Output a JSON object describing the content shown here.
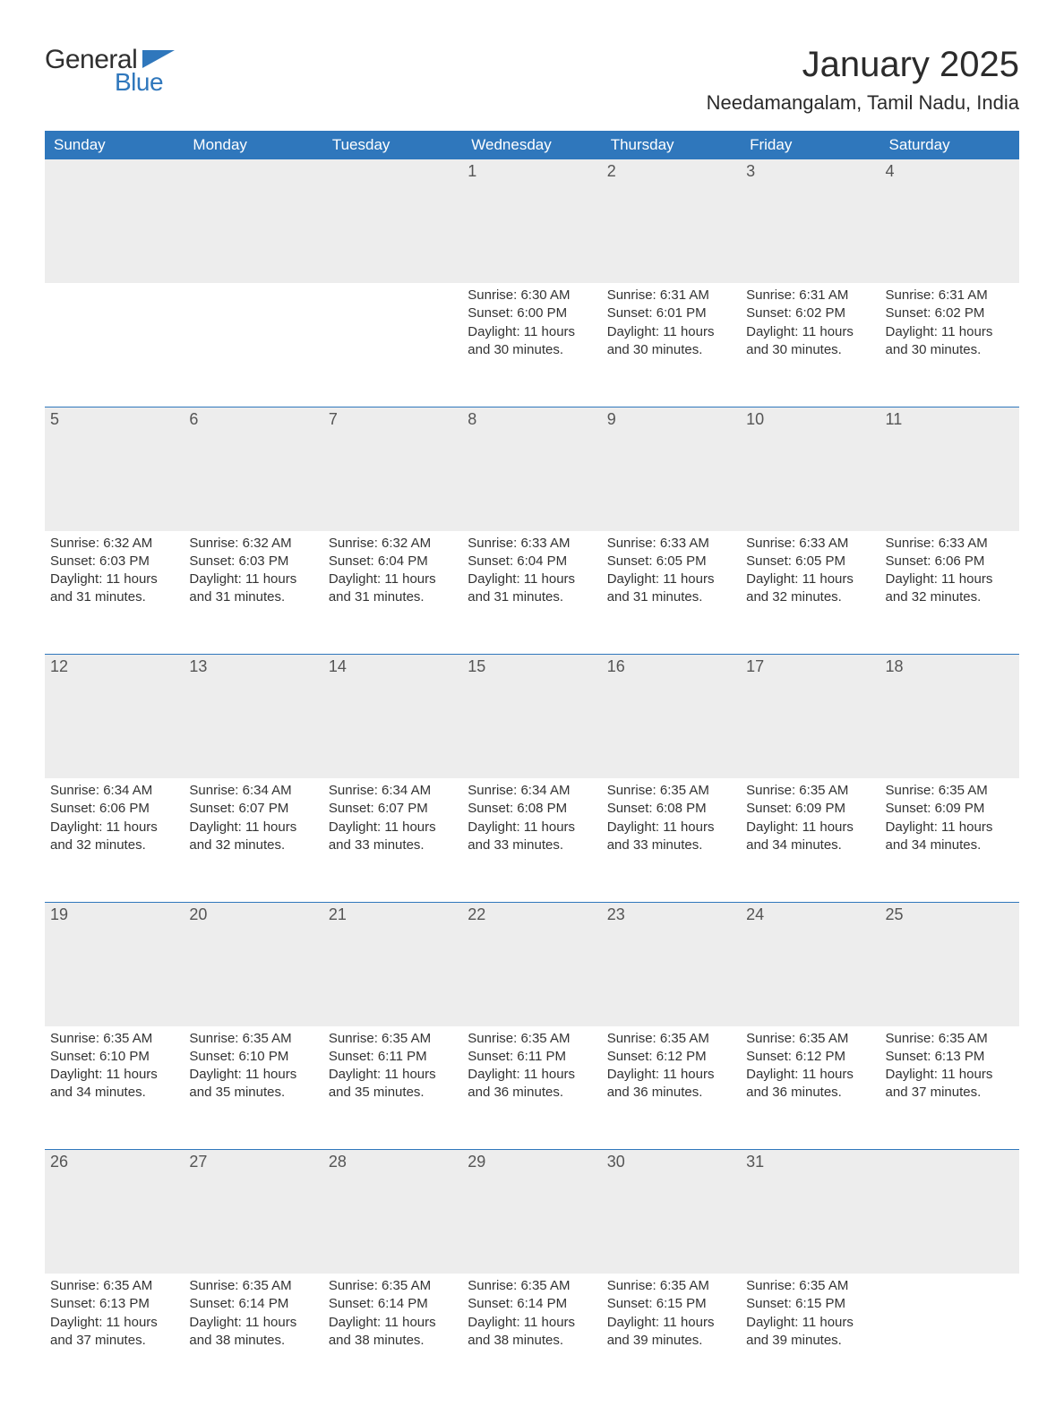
{
  "brand": {
    "general": "General",
    "blue": "Blue",
    "accent": "#2f77bc"
  },
  "title": "January 2025",
  "location": "Needamangalam, Tamil Nadu, India",
  "day_headers": [
    "Sunday",
    "Monday",
    "Tuesday",
    "Wednesday",
    "Thursday",
    "Friday",
    "Saturday"
  ],
  "colors": {
    "header_bg": "#2f77bc",
    "header_text": "#ffffff",
    "daynum_bg": "#ededed",
    "daynum_text": "#555555",
    "body_text": "#333333",
    "rule": "#2f77bc",
    "page_bg": "#ffffff"
  },
  "fonts": {
    "title_size_pt": 30,
    "location_size_pt": 17,
    "header_size_pt": 13,
    "daynum_size_pt": 14,
    "body_size_pt": 11
  },
  "weeks": [
    [
      null,
      null,
      null,
      {
        "n": "1",
        "sunrise": "Sunrise: 6:30 AM",
        "sunset": "Sunset: 6:00 PM",
        "daylight": "Daylight: 11 hours and 30 minutes."
      },
      {
        "n": "2",
        "sunrise": "Sunrise: 6:31 AM",
        "sunset": "Sunset: 6:01 PM",
        "daylight": "Daylight: 11 hours and 30 minutes."
      },
      {
        "n": "3",
        "sunrise": "Sunrise: 6:31 AM",
        "sunset": "Sunset: 6:02 PM",
        "daylight": "Daylight: 11 hours and 30 minutes."
      },
      {
        "n": "4",
        "sunrise": "Sunrise: 6:31 AM",
        "sunset": "Sunset: 6:02 PM",
        "daylight": "Daylight: 11 hours and 30 minutes."
      }
    ],
    [
      {
        "n": "5",
        "sunrise": "Sunrise: 6:32 AM",
        "sunset": "Sunset: 6:03 PM",
        "daylight": "Daylight: 11 hours and 31 minutes."
      },
      {
        "n": "6",
        "sunrise": "Sunrise: 6:32 AM",
        "sunset": "Sunset: 6:03 PM",
        "daylight": "Daylight: 11 hours and 31 minutes."
      },
      {
        "n": "7",
        "sunrise": "Sunrise: 6:32 AM",
        "sunset": "Sunset: 6:04 PM",
        "daylight": "Daylight: 11 hours and 31 minutes."
      },
      {
        "n": "8",
        "sunrise": "Sunrise: 6:33 AM",
        "sunset": "Sunset: 6:04 PM",
        "daylight": "Daylight: 11 hours and 31 minutes."
      },
      {
        "n": "9",
        "sunrise": "Sunrise: 6:33 AM",
        "sunset": "Sunset: 6:05 PM",
        "daylight": "Daylight: 11 hours and 31 minutes."
      },
      {
        "n": "10",
        "sunrise": "Sunrise: 6:33 AM",
        "sunset": "Sunset: 6:05 PM",
        "daylight": "Daylight: 11 hours and 32 minutes."
      },
      {
        "n": "11",
        "sunrise": "Sunrise: 6:33 AM",
        "sunset": "Sunset: 6:06 PM",
        "daylight": "Daylight: 11 hours and 32 minutes."
      }
    ],
    [
      {
        "n": "12",
        "sunrise": "Sunrise: 6:34 AM",
        "sunset": "Sunset: 6:06 PM",
        "daylight": "Daylight: 11 hours and 32 minutes."
      },
      {
        "n": "13",
        "sunrise": "Sunrise: 6:34 AM",
        "sunset": "Sunset: 6:07 PM",
        "daylight": "Daylight: 11 hours and 32 minutes."
      },
      {
        "n": "14",
        "sunrise": "Sunrise: 6:34 AM",
        "sunset": "Sunset: 6:07 PM",
        "daylight": "Daylight: 11 hours and 33 minutes."
      },
      {
        "n": "15",
        "sunrise": "Sunrise: 6:34 AM",
        "sunset": "Sunset: 6:08 PM",
        "daylight": "Daylight: 11 hours and 33 minutes."
      },
      {
        "n": "16",
        "sunrise": "Sunrise: 6:35 AM",
        "sunset": "Sunset: 6:08 PM",
        "daylight": "Daylight: 11 hours and 33 minutes."
      },
      {
        "n": "17",
        "sunrise": "Sunrise: 6:35 AM",
        "sunset": "Sunset: 6:09 PM",
        "daylight": "Daylight: 11 hours and 34 minutes."
      },
      {
        "n": "18",
        "sunrise": "Sunrise: 6:35 AM",
        "sunset": "Sunset: 6:09 PM",
        "daylight": "Daylight: 11 hours and 34 minutes."
      }
    ],
    [
      {
        "n": "19",
        "sunrise": "Sunrise: 6:35 AM",
        "sunset": "Sunset: 6:10 PM",
        "daylight": "Daylight: 11 hours and 34 minutes."
      },
      {
        "n": "20",
        "sunrise": "Sunrise: 6:35 AM",
        "sunset": "Sunset: 6:10 PM",
        "daylight": "Daylight: 11 hours and 35 minutes."
      },
      {
        "n": "21",
        "sunrise": "Sunrise: 6:35 AM",
        "sunset": "Sunset: 6:11 PM",
        "daylight": "Daylight: 11 hours and 35 minutes."
      },
      {
        "n": "22",
        "sunrise": "Sunrise: 6:35 AM",
        "sunset": "Sunset: 6:11 PM",
        "daylight": "Daylight: 11 hours and 36 minutes."
      },
      {
        "n": "23",
        "sunrise": "Sunrise: 6:35 AM",
        "sunset": "Sunset: 6:12 PM",
        "daylight": "Daylight: 11 hours and 36 minutes."
      },
      {
        "n": "24",
        "sunrise": "Sunrise: 6:35 AM",
        "sunset": "Sunset: 6:12 PM",
        "daylight": "Daylight: 11 hours and 36 minutes."
      },
      {
        "n": "25",
        "sunrise": "Sunrise: 6:35 AM",
        "sunset": "Sunset: 6:13 PM",
        "daylight": "Daylight: 11 hours and 37 minutes."
      }
    ],
    [
      {
        "n": "26",
        "sunrise": "Sunrise: 6:35 AM",
        "sunset": "Sunset: 6:13 PM",
        "daylight": "Daylight: 11 hours and 37 minutes."
      },
      {
        "n": "27",
        "sunrise": "Sunrise: 6:35 AM",
        "sunset": "Sunset: 6:14 PM",
        "daylight": "Daylight: 11 hours and 38 minutes."
      },
      {
        "n": "28",
        "sunrise": "Sunrise: 6:35 AM",
        "sunset": "Sunset: 6:14 PM",
        "daylight": "Daylight: 11 hours and 38 minutes."
      },
      {
        "n": "29",
        "sunrise": "Sunrise: 6:35 AM",
        "sunset": "Sunset: 6:14 PM",
        "daylight": "Daylight: 11 hours and 38 minutes."
      },
      {
        "n": "30",
        "sunrise": "Sunrise: 6:35 AM",
        "sunset": "Sunset: 6:15 PM",
        "daylight": "Daylight: 11 hours and 39 minutes."
      },
      {
        "n": "31",
        "sunrise": "Sunrise: 6:35 AM",
        "sunset": "Sunset: 6:15 PM",
        "daylight": "Daylight: 11 hours and 39 minutes."
      },
      null
    ]
  ]
}
